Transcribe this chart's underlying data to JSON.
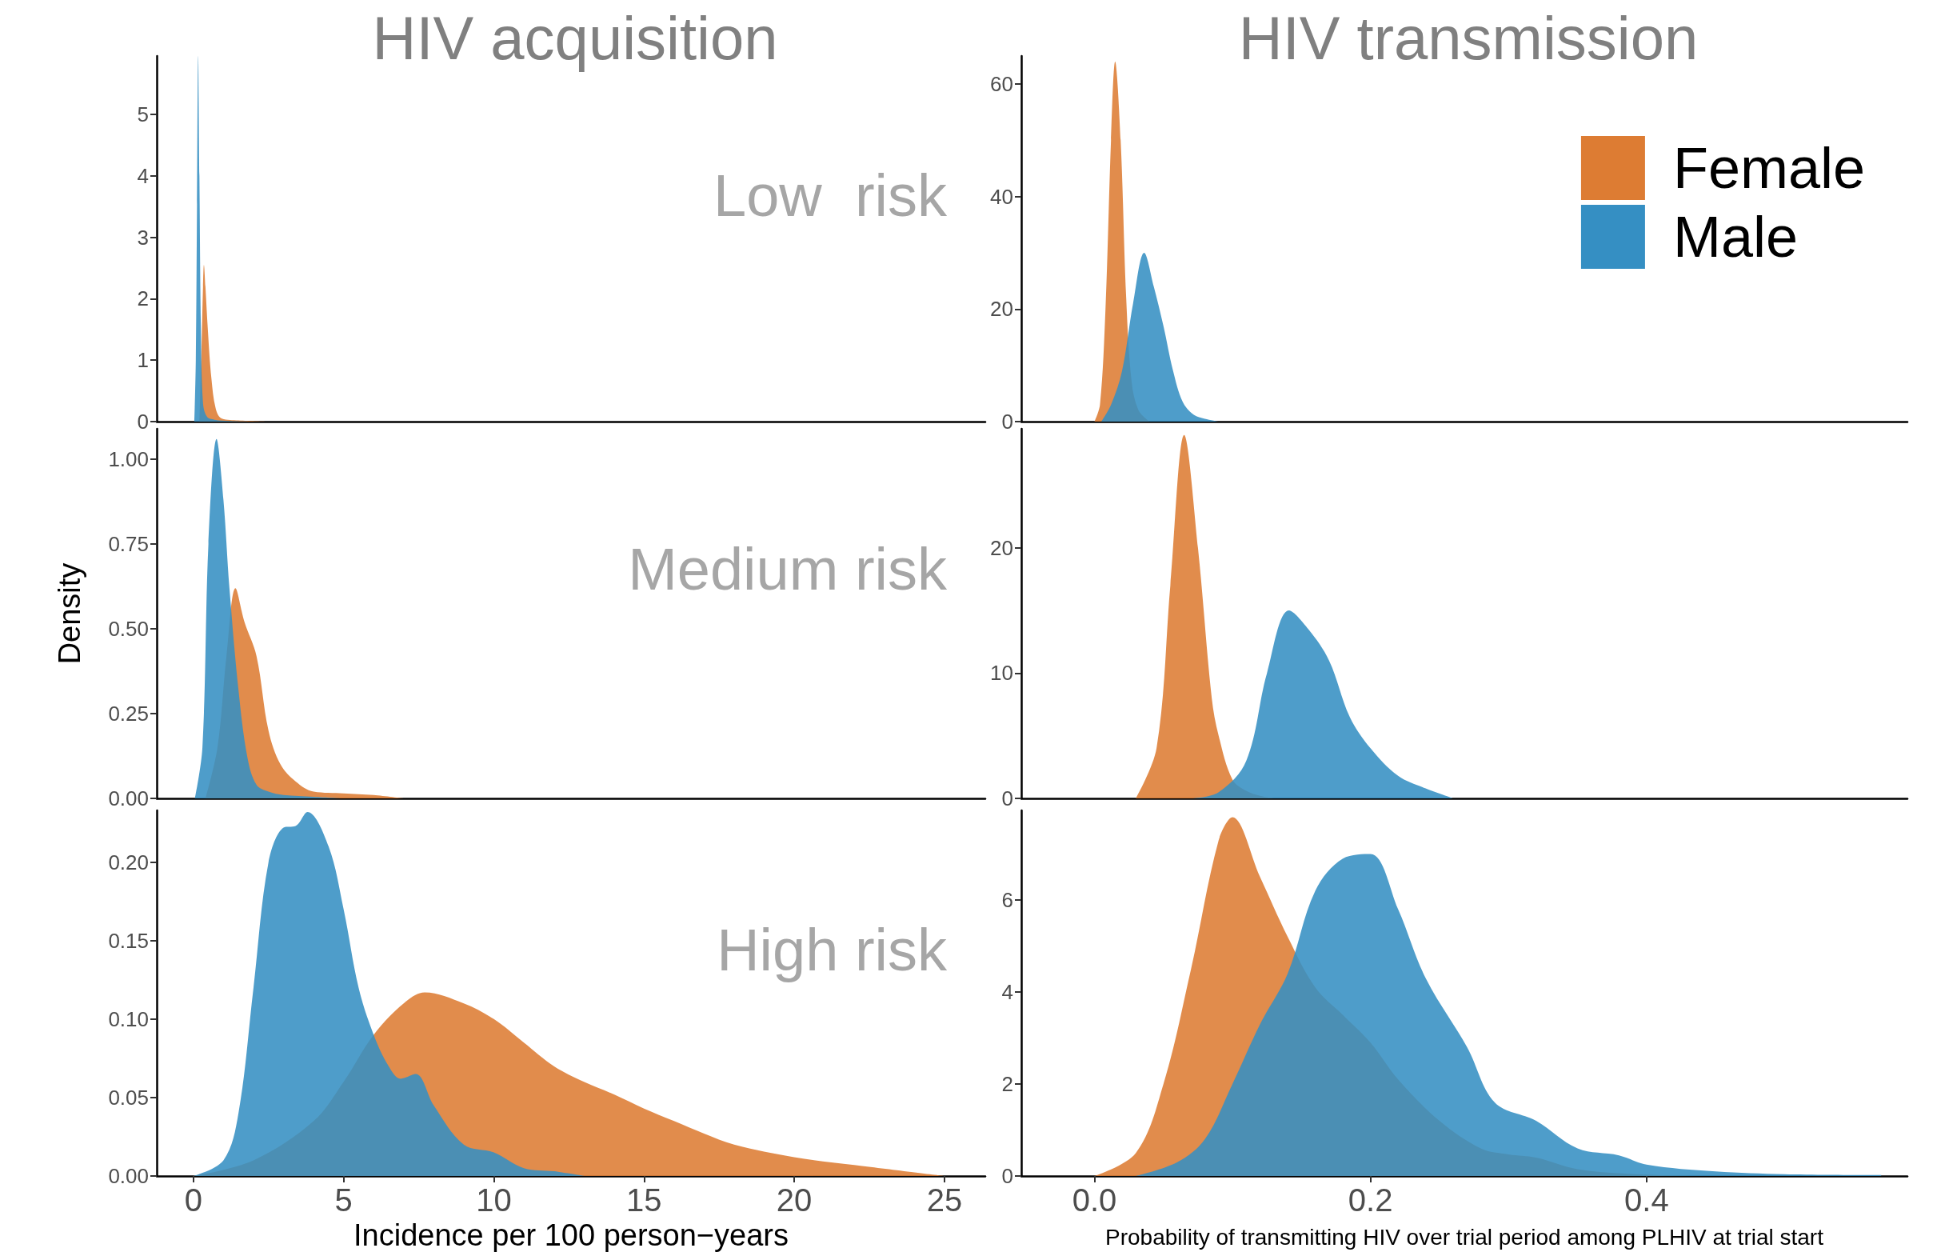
{
  "chart_data": [
    {
      "type": "area",
      "title": "HIV acquisition",
      "annotations": [
        "Low  risk"
      ],
      "tick_labels": "y",
      "xlim": [
        -1.22,
        26.36
      ],
      "ylim": [
        0,
        5.95
      ],
      "yticks": [
        0,
        1,
        2,
        3,
        4,
        5
      ],
      "series": [
        {
          "color": "#dd7c33",
          "x": [
            0.2,
            0.27,
            0.32,
            0.35,
            0.4,
            0.48,
            0.6,
            0.75,
            0.95,
            1.5,
            2.5
          ],
          "values": [
            0,
            1.2,
            2.2,
            2.55,
            2.2,
            1.5,
            0.7,
            0.2,
            0.05,
            0.02,
            0
          ]
        },
        {
          "color": "#358fc3",
          "x": [
            0.03,
            0.08,
            0.12,
            0.16,
            0.2,
            0.25,
            0.32,
            0.45,
            0.7,
            1.2,
            2
          ],
          "values": [
            0,
            1.0,
            3.5,
            5.95,
            4.0,
            1.5,
            0.3,
            0.08,
            0.03,
            0.01,
            0
          ]
        }
      ]
    },
    {
      "type": "area",
      "title": "HIV transmission",
      "legend": "top right",
      "tick_labels": "y",
      "xlim": [
        -0.053,
        0.589
      ],
      "ylim": [
        0,
        65
      ],
      "yticks": [
        0,
        20,
        40,
        60
      ],
      "series": [
        {
          "name": "Female",
          "color": "#dd7c33",
          "x": [
            0.0,
            0.004,
            0.008,
            0.012,
            0.015,
            0.019,
            0.023,
            0.027,
            0.032,
            0.04
          ],
          "values": [
            0,
            3,
            20,
            50,
            64,
            50,
            22,
            7,
            2,
            0
          ]
        },
        {
          "name": "Male",
          "color": "#358fc3",
          "x": [
            0.005,
            0.012,
            0.02,
            0.028,
            0.036,
            0.043,
            0.05,
            0.057,
            0.064,
            0.072,
            0.08,
            0.09
          ],
          "values": [
            0,
            3,
            9,
            21,
            30,
            24,
            17,
            9,
            3.5,
            1.2,
            0.5,
            0
          ]
        }
      ]
    },
    {
      "type": "area",
      "ylabel": "Density",
      "annotations": [
        "Medium risk"
      ],
      "tick_labels": "y",
      "xlim": [
        -1.22,
        26.36
      ],
      "ylim": [
        0,
        1.09
      ],
      "yticks": [
        {
          "value": 0,
          "label": "0.00"
        },
        {
          "value": 0.25,
          "label": "0.25"
        },
        {
          "value": 0.5,
          "label": "0.50"
        },
        {
          "value": 0.75,
          "label": "0.75"
        },
        {
          "value": 1,
          "label": "1.00"
        }
      ],
      "series": [
        {
          "color": "#dd7c33",
          "x": [
            0.4,
            0.8,
            1.1,
            1.4,
            1.7,
            2.1,
            2.5,
            2.9,
            3.4,
            4,
            5,
            6,
            7
          ],
          "values": [
            0,
            0.15,
            0.42,
            0.62,
            0.52,
            0.42,
            0.2,
            0.1,
            0.05,
            0.02,
            0.015,
            0.01,
            0
          ]
        },
        {
          "color": "#358fc3",
          "x": [
            0.05,
            0.3,
            0.5,
            0.77,
            1.0,
            1.2,
            1.5,
            1.8,
            2.1,
            2.5,
            3,
            4,
            5
          ],
          "values": [
            0,
            0.15,
            0.75,
            1.06,
            0.88,
            0.62,
            0.32,
            0.12,
            0.04,
            0.02,
            0.01,
            0.005,
            0
          ]
        }
      ]
    },
    {
      "type": "area",
      "tick_labels": "y",
      "xlim": [
        -0.053,
        0.589
      ],
      "ylim": [
        0,
        29.5
      ],
      "yticks": [
        0,
        10,
        20
      ],
      "series": [
        {
          "color": "#dd7c33",
          "x": [
            0.03,
            0.045,
            0.055,
            0.065,
            0.075,
            0.085,
            0.09,
            0.1,
            0.11,
            0.12,
            0.13
          ],
          "values": [
            0,
            4,
            17,
            29,
            20,
            8,
            5,
            1.5,
            0.6,
            0.2,
            0
          ]
        },
        {
          "color": "#358fc3",
          "x": [
            0.07,
            0.09,
            0.11,
            0.125,
            0.141,
            0.155,
            0.17,
            0.185,
            0.2,
            0.22,
            0.24,
            0.26
          ],
          "values": [
            0,
            0.5,
            3,
            10,
            15,
            13.5,
            11,
            6.5,
            4,
            1.8,
            0.8,
            0
          ]
        }
      ]
    },
    {
      "type": "area",
      "annotations": [
        "High risk"
      ],
      "xlabel": "Incidence per 100 person−years",
      "xlim": [
        -1.22,
        26.36
      ],
      "ylim": [
        0,
        0.233
      ],
      "xticks": [
        0,
        5,
        10,
        15,
        20,
        25
      ],
      "yticks": [
        {
          "value": 0,
          "label": "0.00"
        },
        {
          "value": 0.05,
          "label": "0.05"
        },
        {
          "value": 0.1,
          "label": "0.10"
        },
        {
          "value": 0.15,
          "label": "0.15"
        },
        {
          "value": 0.2,
          "label": "0.20"
        }
      ],
      "series": [
        {
          "color": "#dd7c33",
          "x": [
            0,
            2,
            4,
            5,
            6,
            7,
            7.7,
            9,
            10,
            11,
            12,
            13,
            14,
            15,
            16,
            17,
            18,
            20,
            22,
            25
          ],
          "values": [
            0,
            0.01,
            0.035,
            0.06,
            0.09,
            0.11,
            0.117,
            0.11,
            0.1,
            0.085,
            0.07,
            0.06,
            0.052,
            0.043,
            0.035,
            0.027,
            0.02,
            0.012,
            0.007,
            0
          ]
        },
        {
          "color": "#358fc3",
          "x": [
            0,
            1,
            1.5,
            2,
            2.5,
            3,
            3.4,
            3.8,
            4.5,
            5,
            5.5,
            6,
            6.5,
            6.9,
            7.4,
            8,
            9,
            10,
            11,
            12,
            13
          ],
          "values": [
            0,
            0.01,
            0.04,
            0.12,
            0.2,
            0.222,
            0.223,
            0.232,
            0.21,
            0.17,
            0.12,
            0.09,
            0.07,
            0.062,
            0.065,
            0.045,
            0.02,
            0.015,
            0.005,
            0.003,
            0
          ]
        }
      ]
    },
    {
      "type": "area",
      "xlabel": "Probability of transmitting HIV over trial period among PLHIV at trial start",
      "xlim": [
        -0.053,
        0.589
      ],
      "ylim": [
        0,
        7.95
      ],
      "xticks": [
        {
          "value": 0,
          "label": "0.0"
        },
        {
          "value": 0.2,
          "label": "0.2"
        },
        {
          "value": 0.4,
          "label": "0.4"
        }
      ],
      "yticks": [
        0,
        2,
        4,
        6
      ],
      "series": [
        {
          "color": "#dd7c33",
          "x": [
            0,
            0.03,
            0.05,
            0.07,
            0.09,
            0.1,
            0.12,
            0.14,
            0.16,
            0.18,
            0.2,
            0.22,
            0.25,
            0.28,
            0.3,
            0.32,
            0.35,
            0.4,
            0.45
          ],
          "values": [
            0,
            0.5,
            2,
            4.5,
            7.3,
            7.8,
            6.5,
            5.2,
            4.1,
            3.5,
            2.9,
            2.1,
            1.2,
            0.6,
            0.47,
            0.4,
            0.15,
            0.03,
            0
          ]
        },
        {
          "color": "#358fc3",
          "x": [
            0.03,
            0.06,
            0.08,
            0.1,
            0.12,
            0.14,
            0.16,
            0.18,
            0.2,
            0.22,
            0.24,
            0.27,
            0.29,
            0.32,
            0.35,
            0.38,
            0.4,
            0.45,
            0.5,
            0.57
          ],
          "values": [
            0,
            0.3,
            0.8,
            2,
            3.3,
            4.4,
            6.2,
            6.9,
            7.0,
            5.8,
            4.3,
            2.8,
            1.6,
            1.2,
            0.6,
            0.45,
            0.25,
            0.1,
            0.04,
            0.02
          ]
        }
      ]
    }
  ]
}
